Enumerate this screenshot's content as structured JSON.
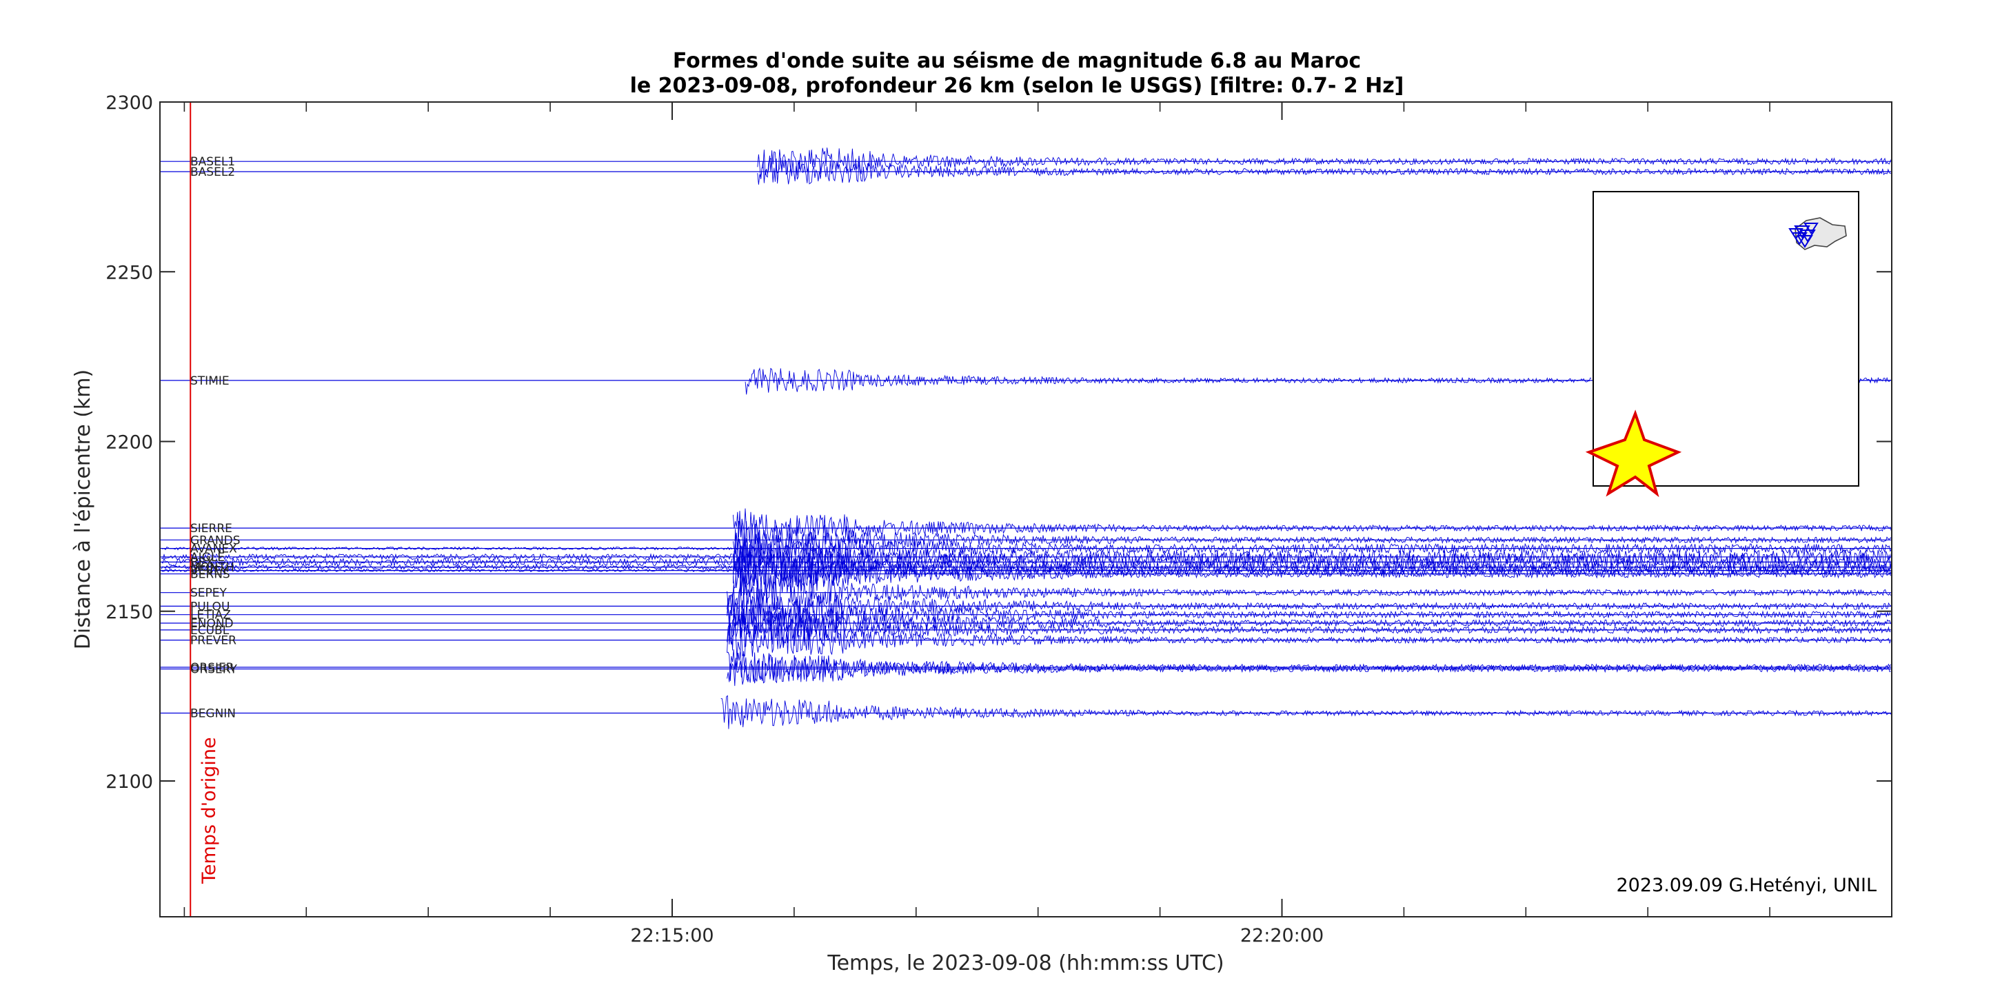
{
  "chart_data": {
    "type": "line",
    "title": "Formes d'onde suite au séisme de magnitude 6.8 au Maroc",
    "subtitle": "le 2023-09-08, profondeur 26 km (selon le USGS) [filtre: 0.7- 2 Hz]",
    "xlabel": "Temps, le 2023-09-08 (hh:mm:ss UTC)",
    "ylabel": "Distance à l'épicentre (km)",
    "x_range_minutes_after_2210": [
      0.0,
      14.2
    ],
    "ylim": [
      2060,
      2300
    ],
    "x_ticks": [
      {
        "minute": 4.2,
        "label": "22:15:00"
      },
      {
        "minute": 9.2,
        "label": "22:20:00"
      }
    ],
    "y_ticks": [
      {
        "value": 2100,
        "label": "2100"
      },
      {
        "value": 2150,
        "label": "2150"
      },
      {
        "value": 2200,
        "label": "2200"
      },
      {
        "value": 2250,
        "label": "2250"
      },
      {
        "value": 2300,
        "label": "2300"
      }
    ],
    "origin_time_minute": 0.25,
    "origin_label": "Temps d'origine",
    "credit": "2023.09.09 G.Hetényi, UNIL",
    "colors": {
      "trace": "#0000dd",
      "origin": "#e00000",
      "star_fill": "#ffff00",
      "star_stroke": "#dd0000"
    },
    "stations": [
      {
        "name": "BASEL1",
        "distance": 2282.5,
        "arrival_minute": 4.9,
        "amplitude": 1.0,
        "noise": 0.12
      },
      {
        "name": "BASEL2",
        "distance": 2279.5,
        "arrival_minute": 4.9,
        "amplitude": 0.9,
        "noise": 0.12
      },
      {
        "name": "STIMIE",
        "distance": 2218.0,
        "arrival_minute": 4.8,
        "amplitude": 0.8,
        "noise": 0.05
      },
      {
        "name": "SIERRE",
        "distance": 2174.5,
        "arrival_minute": 4.7,
        "amplitude": 1.1,
        "noise": 0.1
      },
      {
        "name": "GRANDS",
        "distance": 2171.0,
        "arrival_minute": 4.7,
        "amplitude": 1.1,
        "noise": 0.1
      },
      {
        "name": "AVANEX",
        "distance": 2168.5,
        "arrival_minute": 4.7,
        "amplitude": 1.2,
        "noise": 0.3
      },
      {
        "name": "AIGLE",
        "distance": 2166.0,
        "arrival_minute": 4.7,
        "amplitude": 1.2,
        "noise": 0.6
      },
      {
        "name": "BEX",
        "distance": 2164.5,
        "arrival_minute": 4.7,
        "amplitude": 1.3,
        "noise": 0.8
      },
      {
        "name": "MONTH",
        "distance": 2163.0,
        "arrival_minute": 4.7,
        "amplitude": 1.3,
        "noise": 0.5
      },
      {
        "name": "VEVEY",
        "distance": 2162.0,
        "arrival_minute": 4.7,
        "amplitude": 1.3,
        "noise": 0.3
      },
      {
        "name": "BERNS",
        "distance": 2161.0,
        "arrival_minute": 4.7,
        "amplitude": 1.3,
        "noise": 0.2
      },
      {
        "name": "SEPEY",
        "distance": 2155.5,
        "arrival_minute": 4.65,
        "amplitude": 1.2,
        "noise": 0.1
      },
      {
        "name": "PULOU",
        "distance": 2151.5,
        "arrival_minute": 4.65,
        "amplitude": 1.3,
        "noise": 0.15
      },
      {
        "name": "LETIAZ",
        "distance": 2149.0,
        "arrival_minute": 4.65,
        "amplitude": 1.3,
        "noise": 0.15
      },
      {
        "name": "ENOND",
        "distance": 2146.5,
        "arrival_minute": 4.65,
        "amplitude": 1.3,
        "noise": 0.15
      },
      {
        "name": "ECUBL",
        "distance": 2144.5,
        "arrival_minute": 4.65,
        "amplitude": 1.2,
        "noise": 0.15
      },
      {
        "name": "PREVER",
        "distance": 2141.5,
        "arrival_minute": 4.65,
        "amplitude": 1.1,
        "noise": 0.1
      },
      {
        "name": "ORSIER",
        "distance": 2133.5,
        "arrival_minute": 4.65,
        "amplitude": 1.0,
        "noise": 0.1
      },
      {
        "name": "ORSERY",
        "distance": 2133.0,
        "arrival_minute": 4.65,
        "amplitude": 1.0,
        "noise": 0.1
      },
      {
        "name": "BEGNIN",
        "distance": 2120.0,
        "arrival_minute": 4.6,
        "amplitude": 1.0,
        "noise": 0.05
      }
    ]
  }
}
